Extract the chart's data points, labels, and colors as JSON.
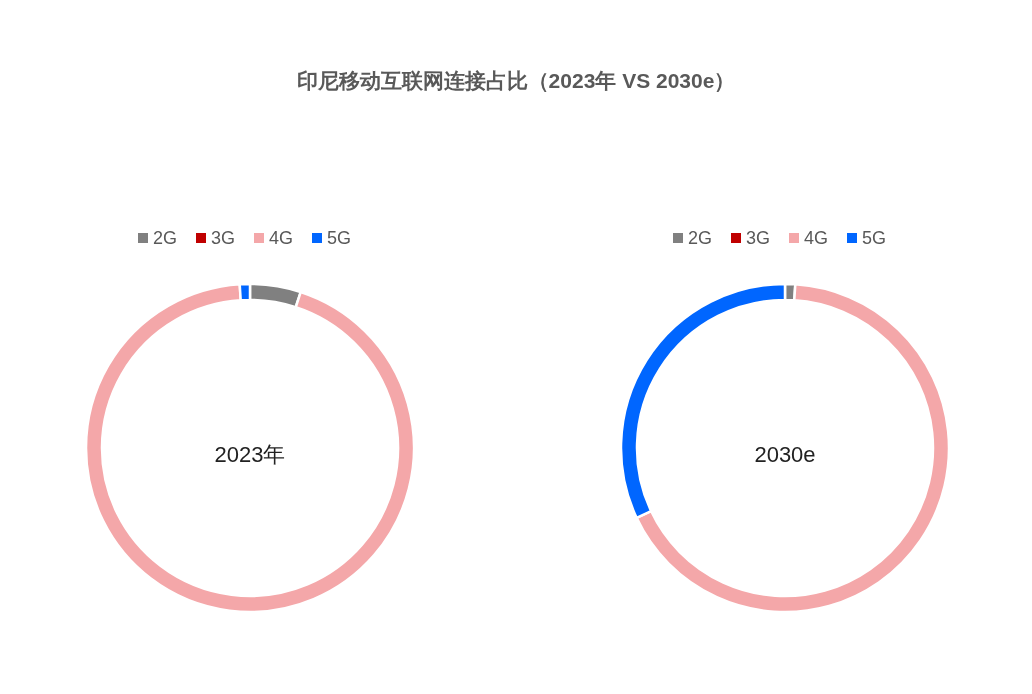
{
  "chart_data": [
    {
      "type": "donut",
      "title": "印尼移动互联网连接占比（2023年 VS 2030e）",
      "subtitle": "2023年",
      "categories": [
        "2G",
        "3G",
        "4G",
        "5G"
      ],
      "values": [
        5,
        0,
        94,
        1
      ],
      "colors": [
        "#808080",
        "#c00000",
        "#f4a7a9",
        "#0066ff"
      ],
      "legend": "top"
    },
    {
      "type": "donut",
      "subtitle": "2030e",
      "categories": [
        "2G",
        "3G",
        "4G",
        "5G"
      ],
      "values": [
        1,
        0,
        67,
        32
      ],
      "colors": [
        "#808080",
        "#c00000",
        "#f4a7a9",
        "#0066ff"
      ],
      "legend": "top"
    }
  ]
}
